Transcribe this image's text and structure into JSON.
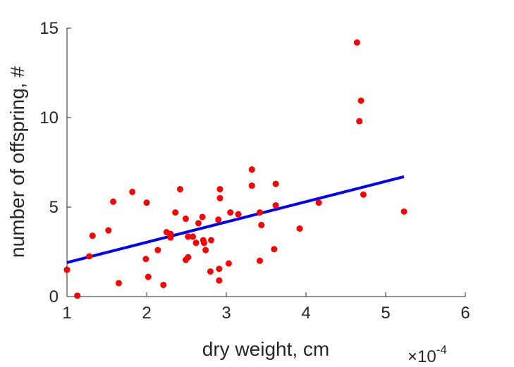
{
  "chart_data": {
    "type": "scatter",
    "title": "",
    "xlabel": "dry weight, cm",
    "ylabel": "number of offspring, #",
    "x_exponent_label": "×10",
    "x_exponent_power": "-4",
    "xlim": [
      1,
      6
    ],
    "ylim": [
      0,
      15
    ],
    "xticks": [
      1,
      2,
      3,
      4,
      5,
      6
    ],
    "yticks": [
      0,
      5,
      10,
      15
    ],
    "grid": false,
    "points_color": "#ff0000",
    "fit_color": "#0000ff",
    "points": [
      [
        1.0,
        1.5
      ],
      [
        1.13,
        0.05
      ],
      [
        1.28,
        2.25
      ],
      [
        1.32,
        3.4
      ],
      [
        1.52,
        3.7
      ],
      [
        1.58,
        5.3
      ],
      [
        1.65,
        0.75
      ],
      [
        1.82,
        5.85
      ],
      [
        1.99,
        2.1
      ],
      [
        2.0,
        5.25
      ],
      [
        2.02,
        1.1
      ],
      [
        2.14,
        2.6
      ],
      [
        2.21,
        0.65
      ],
      [
        2.25,
        3.6
      ],
      [
        2.3,
        3.5
      ],
      [
        2.3,
        3.3
      ],
      [
        2.36,
        4.7
      ],
      [
        2.42,
        6.0
      ],
      [
        2.49,
        4.35
      ],
      [
        2.49,
        2.05
      ],
      [
        2.52,
        2.2
      ],
      [
        2.52,
        3.35
      ],
      [
        2.58,
        3.35
      ],
      [
        2.62,
        3.0
      ],
      [
        2.65,
        4.1
      ],
      [
        2.7,
        4.45
      ],
      [
        2.71,
        3.15
      ],
      [
        2.72,
        3.0
      ],
      [
        2.74,
        2.6
      ],
      [
        2.81,
        3.15
      ],
      [
        2.8,
        1.4
      ],
      [
        2.9,
        4.3
      ],
      [
        2.91,
        1.55
      ],
      [
        2.91,
        0.9
      ],
      [
        2.92,
        6.0
      ],
      [
        2.92,
        5.5
      ],
      [
        3.03,
        1.85
      ],
      [
        3.05,
        4.7
      ],
      [
        3.15,
        4.6
      ],
      [
        3.32,
        7.1
      ],
      [
        3.32,
        6.2
      ],
      [
        3.42,
        4.7
      ],
      [
        3.42,
        2.0
      ],
      [
        3.44,
        4.0
      ],
      [
        3.6,
        2.65
      ],
      [
        3.62,
        5.1
      ],
      [
        3.62,
        6.3
      ],
      [
        3.92,
        3.8
      ],
      [
        4.16,
        5.25
      ],
      [
        4.64,
        14.2
      ],
      [
        4.67,
        9.8
      ],
      [
        4.69,
        10.95
      ],
      [
        4.72,
        5.7
      ],
      [
        5.23,
        4.75
      ]
    ],
    "fit_line": {
      "x": [
        1.0,
        5.23
      ],
      "y": [
        1.9,
        6.7
      ]
    }
  }
}
